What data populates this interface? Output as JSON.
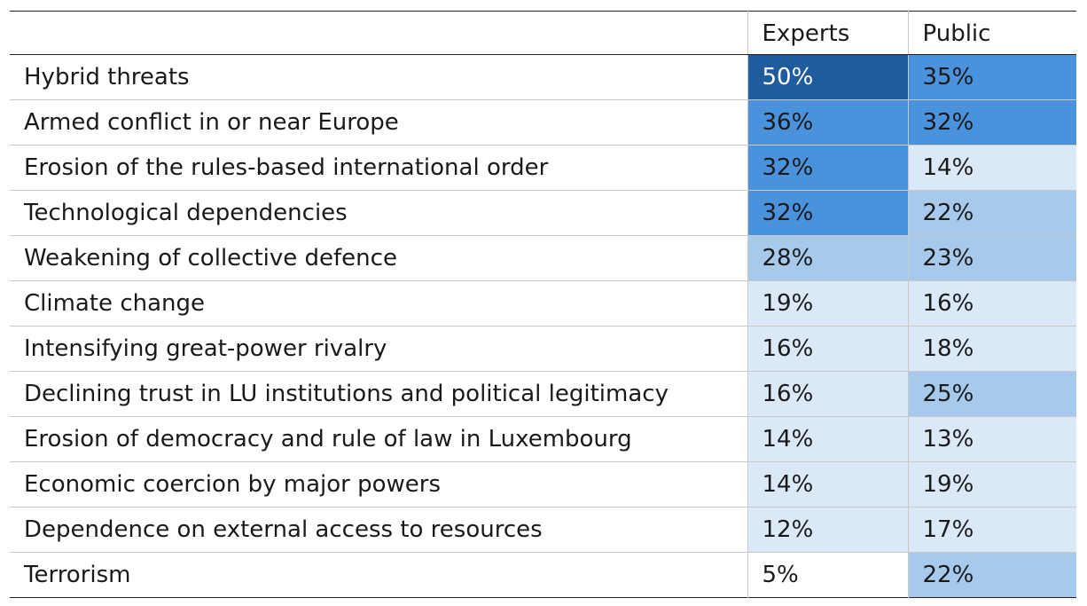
{
  "chart_data": {
    "type": "heatmap",
    "columns": [
      "Experts",
      "Public"
    ],
    "rows": [
      {
        "label": "Hybrid threats",
        "values": [
          "50%",
          "35%"
        ]
      },
      {
        "label": "Armed conflict in or near Europe",
        "values": [
          "36%",
          "32%"
        ]
      },
      {
        "label": "Erosion of the rules-based international order",
        "values": [
          "32%",
          "14%"
        ]
      },
      {
        "label": "Technological dependencies",
        "values": [
          "32%",
          "22%"
        ]
      },
      {
        "label": "Weakening of collective defence",
        "values": [
          "28%",
          "23%"
        ]
      },
      {
        "label": "Climate change",
        "values": [
          "19%",
          "16%"
        ]
      },
      {
        "label": "Intensifying great-power rivalry",
        "values": [
          "16%",
          "18%"
        ]
      },
      {
        "label": "Declining trust in LU institutions and political legitimacy",
        "values": [
          "16%",
          "25%"
        ]
      },
      {
        "label": "Erosion of democracy and rule of law in Luxembourg",
        "values": [
          "14%",
          "13%"
        ]
      },
      {
        "label": "Economic coercion by major powers",
        "values": [
          "14%",
          "19%"
        ]
      },
      {
        "label": "Dependence on external access to resources",
        "values": [
          "12%",
          "17%"
        ]
      },
      {
        "label": "Terrorism",
        "values": [
          "5%",
          "22%"
        ]
      }
    ],
    "color_scale": [
      {
        "min": 0,
        "max": 12,
        "color": "#ffffff",
        "text": "#1a1a1a"
      },
      {
        "min": 12,
        "max": 22,
        "color": "#dae8f7",
        "text": "#1a1a1a"
      },
      {
        "min": 22,
        "max": 32,
        "color": "#a7c9ec",
        "text": "#1a1a1a"
      },
      {
        "min": 32,
        "max": 45,
        "color": "#4a92dc",
        "text": "#1a1a1a"
      },
      {
        "min": 45,
        "max": 100,
        "color": "#1f5c9e",
        "text": "#ffffff"
      }
    ],
    "cell_levels": [
      [
        4,
        3
      ],
      [
        3,
        3
      ],
      [
        3,
        1
      ],
      [
        3,
        2
      ],
      [
        2,
        2
      ],
      [
        1,
        1
      ],
      [
        1,
        1
      ],
      [
        1,
        2
      ],
      [
        1,
        1
      ],
      [
        1,
        1
      ],
      [
        1,
        1
      ],
      [
        0,
        2
      ]
    ]
  }
}
